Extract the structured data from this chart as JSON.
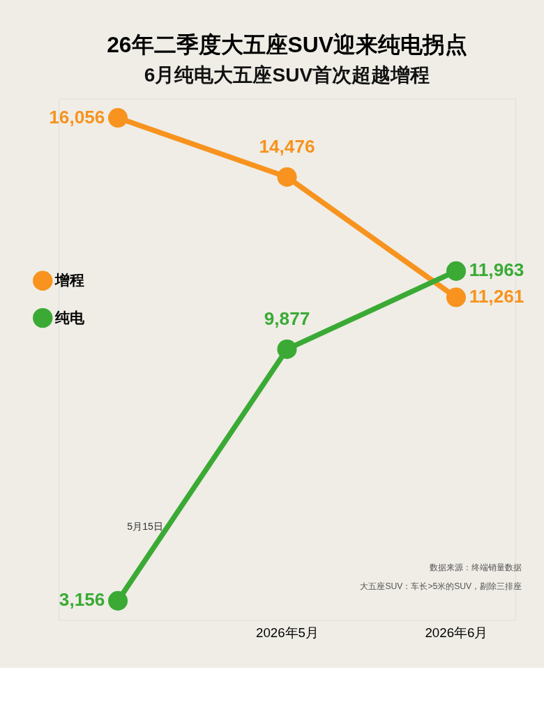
{
  "chart_data": {
    "type": "line",
    "title": "26年二季度大五座SUV迎来纯电拐点",
    "subtitle": "6月纯电大五座SUV首次超越增程",
    "categories": [
      null,
      "2026年5月",
      "2026年6月"
    ],
    "series": [
      {
        "name": "增程",
        "color": "#f7931e",
        "values": [
          16056,
          14476,
          11261
        ],
        "value_labels": [
          "16,056",
          "14,476",
          "11,261"
        ]
      },
      {
        "name": "纯电",
        "color": "#3aaa35",
        "values": [
          3156,
          9877,
          11963
        ],
        "value_labels": [
          "3,156",
          "9,877",
          "11,963"
        ]
      }
    ],
    "marker": "circle",
    "line_style": "solid",
    "grid": false,
    "legend": "left",
    "annotations": [
      "5月15日",
      "数据来源：终端销量数据",
      "大五座SUV：车长>5米的SUV，剔除三排座"
    ]
  }
}
